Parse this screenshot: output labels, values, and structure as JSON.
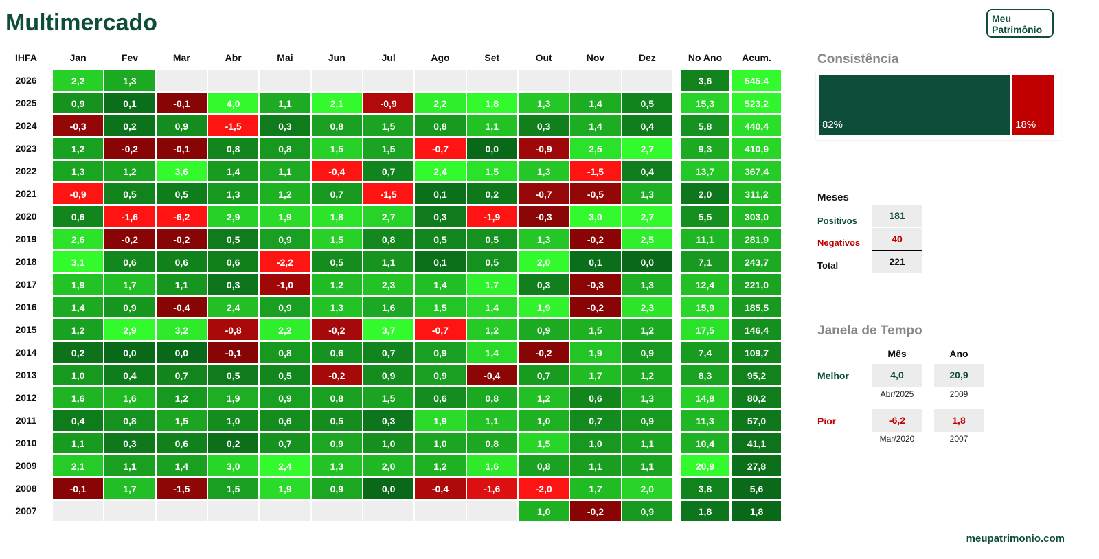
{
  "header": {
    "title": "Multimercado",
    "logo": [
      "Meu",
      "Patrimônio"
    ]
  },
  "table": {
    "corner": "IHFA",
    "columns": [
      "Jan",
      "Fev",
      "Mar",
      "Abr",
      "Mai",
      "Jun",
      "Jul",
      "Ago",
      "Set",
      "Out",
      "Nov",
      "Dez",
      "No Ano",
      "Acum."
    ],
    "rows": [
      {
        "year": "2026",
        "cells": [
          "2,2",
          "1,3",
          null,
          null,
          null,
          null,
          null,
          null,
          null,
          null,
          null,
          null,
          "3,6",
          "545,4"
        ]
      },
      {
        "year": "2025",
        "cells": [
          "0,9",
          "0,1",
          "-0,1",
          "4,0",
          "1,1",
          "2,1",
          "-0,9",
          "2,2",
          "1,8",
          "1,3",
          "1,4",
          "0,5",
          "15,3",
          "523,2"
        ]
      },
      {
        "year": "2024",
        "cells": [
          "-0,3",
          "0,2",
          "0,9",
          "-1,5",
          "0,3",
          "0,8",
          "1,5",
          "0,8",
          "1,1",
          "0,3",
          "1,4",
          "0,4",
          "5,8",
          "440,4"
        ]
      },
      {
        "year": "2023",
        "cells": [
          "1,2",
          "-0,2",
          "-0,1",
          "0,8",
          "0,8",
          "1,5",
          "1,5",
          "-0,7",
          "0,0",
          "-0,9",
          "2,5",
          "2,7",
          "9,3",
          "410,9"
        ]
      },
      {
        "year": "2022",
        "cells": [
          "1,3",
          "1,2",
          "3,6",
          "1,4",
          "1,1",
          "-0,4",
          "0,7",
          "2,4",
          "1,5",
          "1,3",
          "-1,5",
          "0,4",
          "13,7",
          "367,4"
        ]
      },
      {
        "year": "2021",
        "cells": [
          "-0,9",
          "0,5",
          "0,5",
          "1,3",
          "1,2",
          "0,7",
          "-1,5",
          "0,1",
          "0,2",
          "-0,7",
          "-0,5",
          "1,3",
          "2,0",
          "311,2"
        ]
      },
      {
        "year": "2020",
        "cells": [
          "0,6",
          "-1,6",
          "-6,2",
          "2,9",
          "1,9",
          "1,8",
          "2,7",
          "0,3",
          "-1,9",
          "-0,3",
          "3,0",
          "2,7",
          "5,5",
          "303,0"
        ]
      },
      {
        "year": "2019",
        "cells": [
          "2,6",
          "-0,2",
          "-0,2",
          "0,5",
          "0,9",
          "1,5",
          "0,8",
          "0,5",
          "0,5",
          "1,3",
          "-0,2",
          "2,5",
          "11,1",
          "281,9"
        ]
      },
      {
        "year": "2018",
        "cells": [
          "3,1",
          "0,6",
          "0,6",
          "0,6",
          "-2,2",
          "0,5",
          "1,1",
          "0,1",
          "0,5",
          "2,0",
          "0,1",
          "0,0",
          "7,1",
          "243,7"
        ]
      },
      {
        "year": "2017",
        "cells": [
          "1,9",
          "1,7",
          "1,1",
          "0,3",
          "-1,0",
          "1,2",
          "2,3",
          "1,4",
          "1,7",
          "0,3",
          "-0,3",
          "1,3",
          "12,4",
          "221,0"
        ]
      },
      {
        "year": "2016",
        "cells": [
          "1,4",
          "0,9",
          "-0,4",
          "2,4",
          "0,9",
          "1,3",
          "1,6",
          "1,5",
          "1,4",
          "1,9",
          "-0,2",
          "2,3",
          "15,9",
          "185,5"
        ]
      },
      {
        "year": "2015",
        "cells": [
          "1,2",
          "2,9",
          "3,2",
          "-0,8",
          "2,2",
          "-0,2",
          "3,7",
          "-0,7",
          "1,2",
          "0,9",
          "1,5",
          "1,2",
          "17,5",
          "146,4"
        ]
      },
      {
        "year": "2014",
        "cells": [
          "0,2",
          "0,0",
          "0,0",
          "-0,1",
          "0,8",
          "0,6",
          "0,7",
          "0,9",
          "1,4",
          "-0,2",
          "1,9",
          "0,9",
          "7,4",
          "109,7"
        ]
      },
      {
        "year": "2013",
        "cells": [
          "1,0",
          "0,4",
          "0,7",
          "0,5",
          "0,5",
          "-0,2",
          "0,9",
          "0,9",
          "-0,4",
          "0,7",
          "1,7",
          "1,2",
          "8,3",
          "95,2"
        ]
      },
      {
        "year": "2012",
        "cells": [
          "1,6",
          "1,6",
          "1,2",
          "1,9",
          "0,9",
          "0,8",
          "1,5",
          "0,6",
          "0,8",
          "1,2",
          "0,6",
          "1,3",
          "14,8",
          "80,2"
        ]
      },
      {
        "year": "2011",
        "cells": [
          "0,4",
          "0,8",
          "1,5",
          "1,0",
          "0,6",
          "0,5",
          "0,3",
          "1,9",
          "1,1",
          "1,0",
          "0,7",
          "0,9",
          "11,3",
          "57,0"
        ]
      },
      {
        "year": "2010",
        "cells": [
          "1,1",
          "0,3",
          "0,6",
          "0,2",
          "0,7",
          "0,9",
          "1,0",
          "1,0",
          "0,8",
          "1,5",
          "1,0",
          "1,1",
          "10,4",
          "41,1"
        ]
      },
      {
        "year": "2009",
        "cells": [
          "2,1",
          "1,1",
          "1,4",
          "3,0",
          "2,4",
          "1,3",
          "2,0",
          "1,2",
          "1,6",
          "0,8",
          "1,1",
          "1,1",
          "20,9",
          "27,8"
        ]
      },
      {
        "year": "2008",
        "cells": [
          "-0,1",
          "1,7",
          "-1,5",
          "1,5",
          "1,9",
          "0,9",
          "0,0",
          "-0,4",
          "-1,6",
          "-2,0",
          "1,7",
          "2,0",
          "3,8",
          "5,6"
        ]
      },
      {
        "year": "2007",
        "cells": [
          null,
          null,
          null,
          null,
          null,
          null,
          null,
          null,
          null,
          "1,0",
          "-0,2",
          "0,9",
          "1,8",
          "1,8"
        ]
      }
    ]
  },
  "consistency": {
    "title": "Consistência",
    "positive": "82%",
    "negative": "18%"
  },
  "months": {
    "title": "Meses",
    "rows": [
      {
        "label": "Positivos",
        "value": "181"
      },
      {
        "label": "Negativos",
        "value": "40"
      },
      {
        "label": "Total",
        "value": "221"
      }
    ]
  },
  "window": {
    "title": "Janela de Tempo",
    "columns": [
      "Mês",
      "Ano"
    ],
    "rows": [
      {
        "label": "Melhor",
        "month": "4,0",
        "month_date": "Abr/2025",
        "year": "20,9",
        "year_date": "2009"
      },
      {
        "label": "Pior",
        "month": "-6,2",
        "month_date": "Mar/2020",
        "year": "1,8",
        "year_date": "2007"
      }
    ]
  },
  "footer": "meupatrimonio.com"
}
